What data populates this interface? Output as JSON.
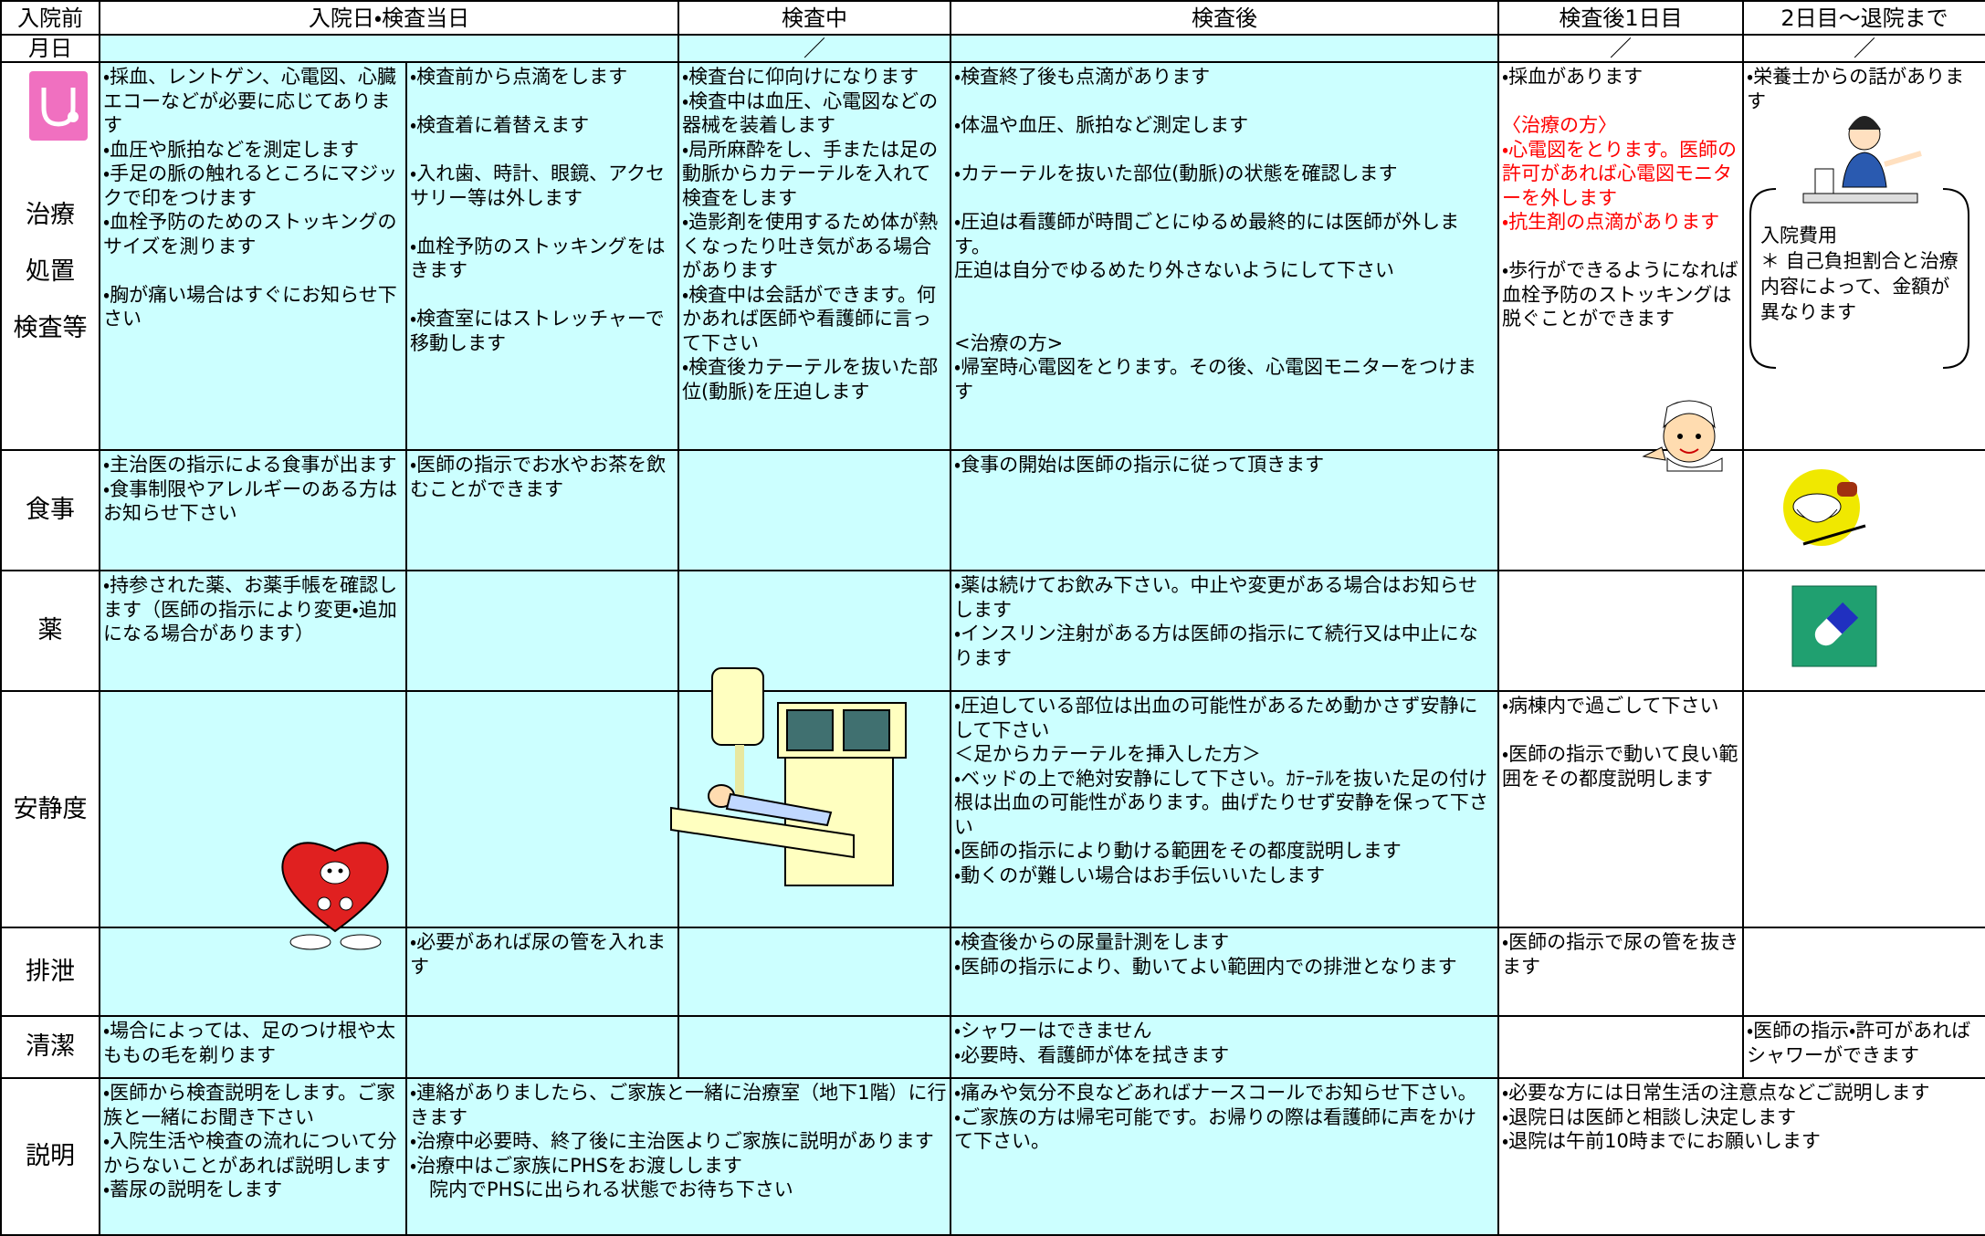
{
  "header": [
    "入院前",
    "入院日・検査当日",
    "検査中",
    "検査後",
    "検査後1日目",
    "2日目～退院まで"
  ],
  "date_row": {
    "label": "月日",
    "marks": [
      "／",
      "／",
      "／"
    ]
  },
  "treatment": {
    "label": [
      "治療",
      "処置",
      "検査等"
    ],
    "admission_1": [
      "・採血、レントゲン、心電図、心臓エコーなどが必要に応じてあります",
      "・血圧や脈拍などを測定します",
      "・手足の脈の触れるところにマジックで印をつけます",
      "・血栓予防のためのストッキングのサイズを測ります",
      "・胸が痛い場合はすぐにお知らせ下さい"
    ],
    "admission_2": [
      "・検査前から点滴をします",
      "・検査着に着替えます",
      "・入れ歯、時計、眼鏡、アクセサリー等は外します",
      "・血栓予防のストッキングをはきます",
      "・検査室にはストレッチャーで移動します"
    ],
    "during": [
      "・検査台に仰向けになります",
      "・検査中は血圧、心電図などの器械を装着します",
      "・局所麻酔をし、手または足の動脈からカテーテルを入れて検査をします",
      "・造影剤を使用するため体が熱くなったり吐き気がある場合があります",
      "・検査中は会話ができます。何かあれば医師や看護師に言って下さい",
      "・検査後カテーテルを抜いた部位(動脈)を圧迫します"
    ],
    "after": [
      "・検査終了後も点滴があります",
      "・体温や血圧、脈拍など測定します",
      "・カテーテルを抜いた部位(動脈)の状態を確認します",
      "・圧迫は看護師が時間ごとにゆるめ最終的には医師が外します。",
      "圧迫は自分でゆるめたり外さないようにして下さい",
      "<治療の方>",
      "・帰室時心電図をとります。その後、心電図モニターをつけます"
    ],
    "day1": [
      "・採血があります"
    ],
    "day1_red": [
      "〈治療の方〉",
      "・心電図をとります。医師の許可があれば心電図モニターを外します",
      "・抗生剤の点滴があります"
    ],
    "day1_more": [
      "・歩行ができるようになれば血栓予防のストッキングは脱ぐことができます"
    ],
    "day2": [
      "・栄養士からの話があります"
    ],
    "cost": {
      "title": "入院費用",
      "note": "＊ 自己負担割合と治療内容によって、金額が異なります"
    }
  },
  "meal": {
    "label": "食事",
    "admission_1": [
      "・主治医の指示による食事が出ます",
      "・食事制限やアレルギーのある方はお知らせ下さい"
    ],
    "admission_2": [
      "・医師の指示でお水やお茶を飲むことができます"
    ],
    "after": [
      "・食事の開始は医師の指示に従って頂きます"
    ]
  },
  "medicine": {
    "label": "薬",
    "admission_1": [
      "・持参された薬、お薬手帳を確認します（医師の指示により変更・追加になる場合があります）"
    ],
    "after": [
      "・薬は続けてお飲み下さい。中止や変更がある場合はお知らせします",
      "・インスリン注射がある方は医師の指示にて続行又は中止になります"
    ]
  },
  "rest": {
    "label": "安静度",
    "after": [
      "・圧迫している部位は出血の可能性があるため動かさず安静にして下さい",
      "＜足からカテーテルを挿入した方＞",
      "・ベッドの上で絶対安静にして下さい。ｶﾃｰﾃﾙを抜いた足の付け根は出血の可能性があります。曲げたりせず安静を保って下さい",
      "・医師の指示により動ける範囲をその都度説明します",
      "・動くのが難しい場合はお手伝いいたします"
    ],
    "day1": [
      "・病棟内で過ごして下さい",
      "・医師の指示で動いて良い範囲をその都度説明します"
    ]
  },
  "excretion": {
    "label": "排泄",
    "admission_2": [
      "・必要があれば尿の管を入れます"
    ],
    "after": [
      "・検査後からの尿量計測をします",
      "・医師の指示により、動いてよい範囲内での排泄となります"
    ],
    "day1": [
      "・医師の指示で尿の管を抜きます"
    ]
  },
  "hygiene": {
    "label": "清潔",
    "admission_1": [
      "・場合によっては、足のつけ根や太ももの毛を剃ります"
    ],
    "after": [
      "・シャワーはできません",
      "・必要時、看護師が体を拭きます"
    ],
    "day2": [
      "・医師の指示・許可があればシャワーができます"
    ]
  },
  "explanation": {
    "label": "説明",
    "admission_1": [
      "・医師から検査説明をします。ご家族と一緒にお聞き下さい",
      "・入院生活や検査の流れについて分からないことがあれば説明します",
      "・蓄尿の説明をします"
    ],
    "admission_2": [
      "・連絡がありましたら、ご家族と一緒に治療室（地下1階）に行きます",
      "・治療中必要時、終了後に主治医よりご家族に説明があります",
      "・治療中はご家族にPHSをお渡しします",
      "　院内でPHSに出られる状態でお待ち下さい"
    ],
    "after": [
      "・痛みや気分不良などあればナースコールでお知らせ下さい。",
      "・ご家族の方は帰宅可能です。お帰りの際は看護師に声をかけて下さい。"
    ],
    "day1": [
      "・必要な方には日常生活の注意点などご説明します",
      "・退院日は医師と相談し決定します",
      "・退院は午前10時までにお願いします"
    ]
  }
}
